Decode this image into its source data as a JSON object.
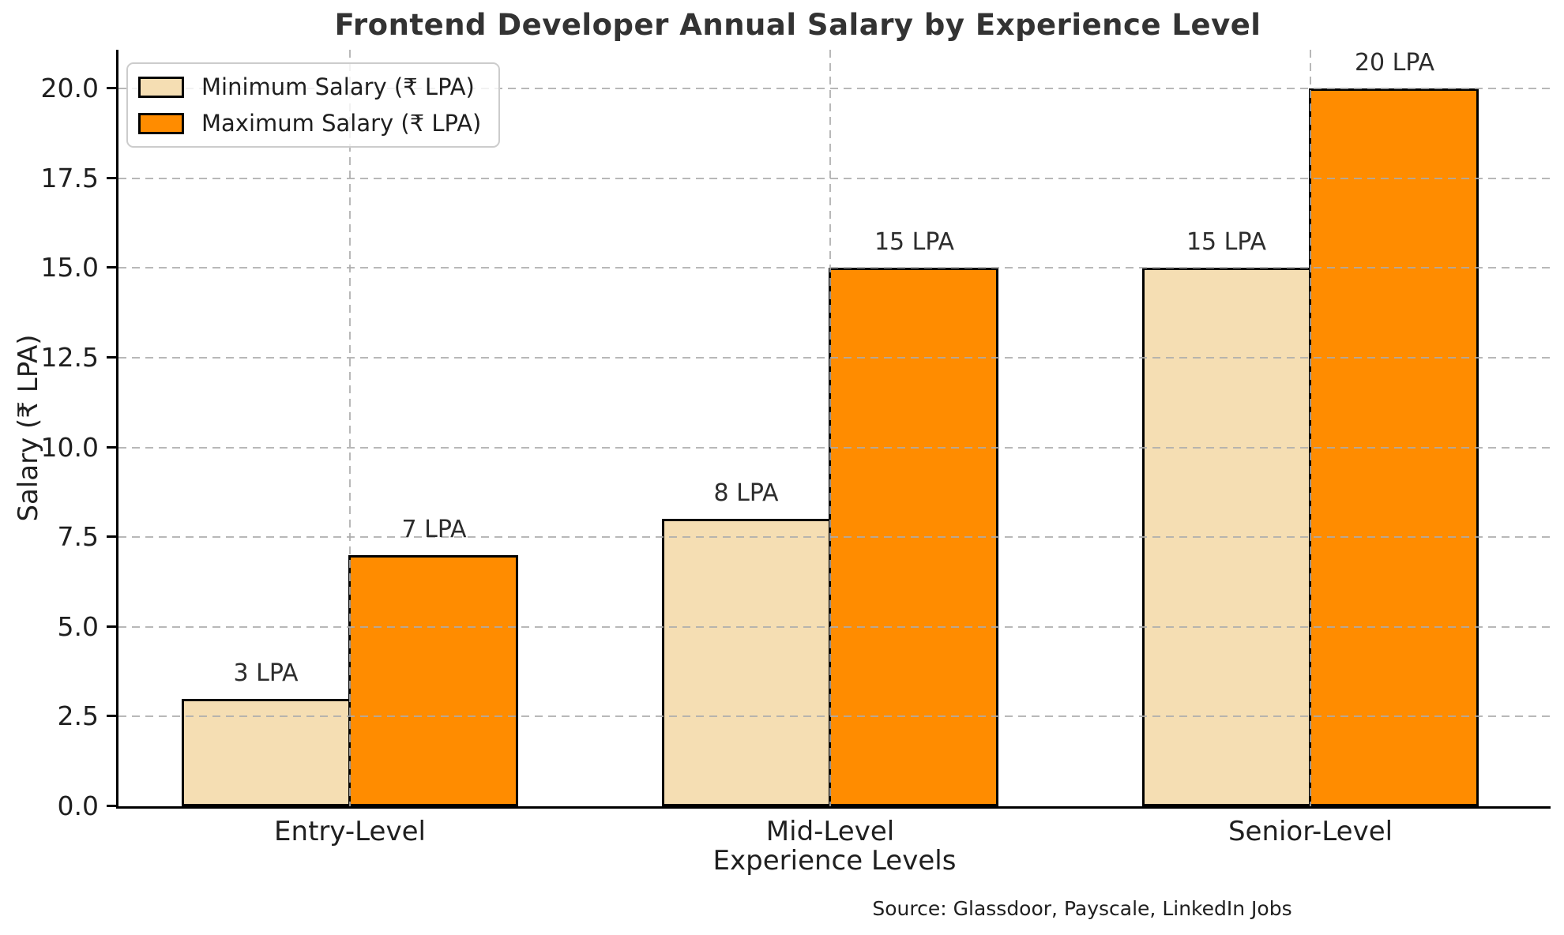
{
  "chart_data": {
    "type": "bar",
    "title": "Frontend Developer Annual Salary by Experience Level",
    "categories": [
      "Entry-Level",
      "Mid-Level",
      "Senior-Level"
    ],
    "series": [
      {
        "name": "Minimum Salary (₹ LPA)",
        "color": "#F5DEB3",
        "values": [
          3,
          8,
          15
        ],
        "bar_labels": [
          "3 LPA",
          "8 LPA",
          "15 LPA"
        ]
      },
      {
        "name": "Maximum Salary (₹ LPA)",
        "color": "#FF8C00",
        "values": [
          7,
          15,
          20
        ],
        "bar_labels": [
          "7 LPA",
          "15 LPA",
          "20 LPA"
        ]
      }
    ],
    "xlabel": "Experience Levels",
    "ylabel": "Salary (₹ LPA)",
    "yticks": [
      0,
      2.5,
      5,
      7.5,
      10,
      12.5,
      15,
      17.5,
      20
    ],
    "ytick_labels": [
      "0.0",
      "2.5",
      "5.0",
      "7.5",
      "10.0",
      "12.5",
      "15.0",
      "17.5",
      "20.0"
    ],
    "ylim": [
      0,
      21.1
    ],
    "grid": true,
    "grid_style": "dashed, horizontal and vertical, drawn above bars",
    "legend_position": "upper left",
    "bar_edge_color": "#000000",
    "grid_color": "#acacac",
    "title_color": "#333333",
    "text_color": "#1f1f1f",
    "source_note": "Source: Glassdoor, Payscale, LinkedIn Jobs"
  }
}
